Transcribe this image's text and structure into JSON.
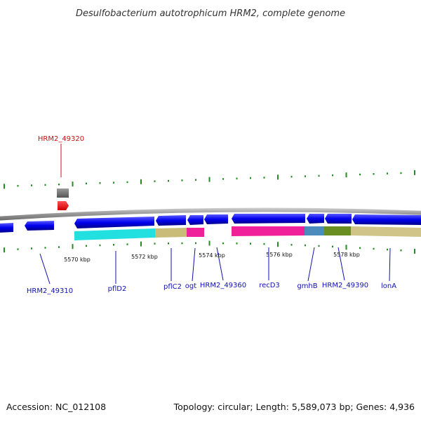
{
  "title": "Desulfobacterium autotrophicum HRM2, complete genome",
  "footer": {
    "accession": "Accession: NC_012108",
    "summary": "Topology: circular; Length: 5,589,073 bp; Genes: 4,936"
  },
  "colors": {
    "forward_cds": "#0000ee",
    "label_blue": "#1010b0",
    "label_red": "#c81010",
    "tick_green": "#228b22",
    "backbone": "#8a8a8a"
  },
  "scale_labels": [
    "5570 kbp",
    "5572 kbp",
    "5574 kbp",
    "5576 kbp",
    "5578 kbp"
  ],
  "gene_labels": {
    "hrm2_49320": "HRM2_49320",
    "hrm2_49310": "HRM2_49310",
    "pflD2": "pflD2",
    "pflC2": "pflC2",
    "ogt": "ogt",
    "hrm2_49360": "HRM2_49360",
    "recD3": "recD3",
    "gmhB": "gmhB",
    "hrm2_49390": "HRM2_49390",
    "lonA": "lonA"
  }
}
